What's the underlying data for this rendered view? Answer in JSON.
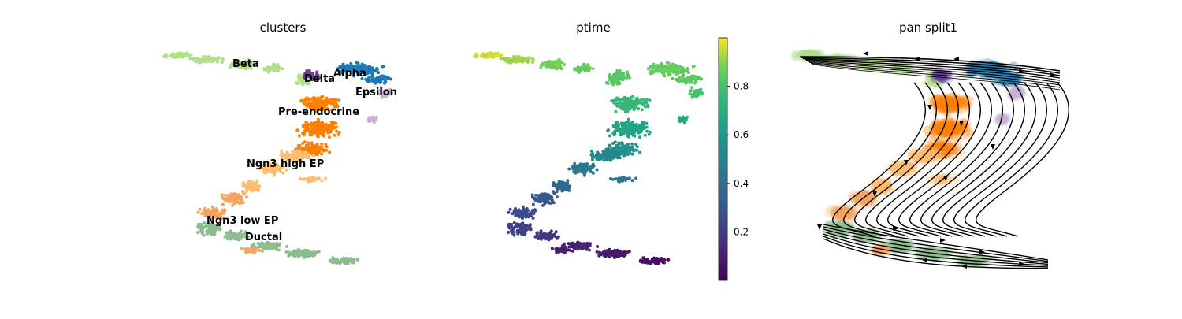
{
  "chart_data": [
    {
      "type": "scatter",
      "title": "clusters",
      "cluster_colors": {
        "Ductal": "#8fbc8f",
        "Ngn3 low EP": "#f4a460",
        "Ngn3 high EP": "#fdbf6f",
        "Pre-endocrine": "#ff7f00",
        "Beta": "#b2df8a",
        "Alpha": "#1f78b4",
        "Delta": "#6a3d9a",
        "Epsilon": "#cab2d6"
      },
      "labels": [
        "Beta",
        "Alpha",
        "Delta",
        "Epsilon",
        "Pre-endocrine",
        "Ngn3 high EP",
        "Ngn3 low EP",
        "Ductal"
      ]
    },
    {
      "type": "scatter",
      "title": "ptime",
      "colormap": "viridis",
      "colorbar_range": [
        0,
        1
      ],
      "colorbar_ticks": [
        "0.2",
        "0.4",
        "0.6",
        "0.8"
      ],
      "colorbar_tick_values": [
        0.2,
        0.4,
        0.6,
        0.8
      ]
    },
    {
      "type": "streamplot",
      "title": "pan split1"
    }
  ]
}
